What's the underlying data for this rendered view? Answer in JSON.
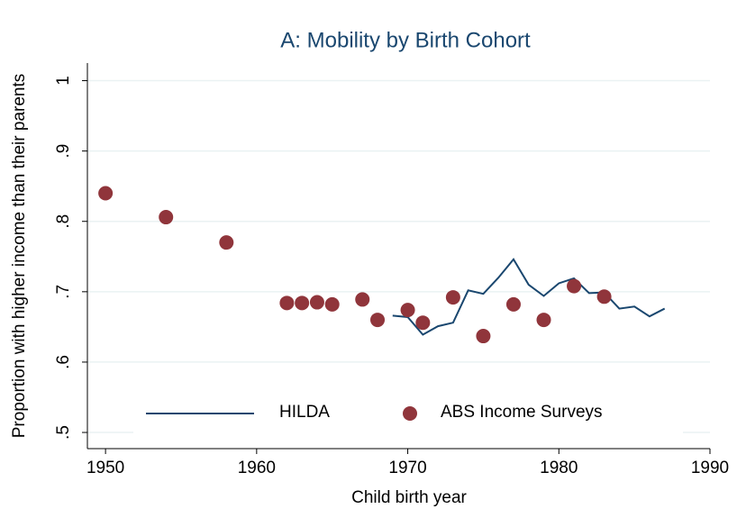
{
  "chart_data": {
    "type": "line",
    "title": "A: Mobility by Birth Cohort",
    "x_label": "Child birth year",
    "y_label": "Proportion with higher income than their parents",
    "xlim": [
      1948.8,
      1990
    ],
    "xticks": [
      1950,
      1960,
      1970,
      1980,
      1990
    ],
    "ylim": [
      0.477,
      1.025
    ],
    "yticks": [
      {
        "value": 0.5,
        "label": ".5"
      },
      {
        "value": 0.6,
        "label": ".6"
      },
      {
        "value": 0.7,
        "label": ".7"
      },
      {
        "value": 0.8,
        "label": ".8"
      },
      {
        "value": 0.9,
        "label": ".9"
      },
      1
    ],
    "grid": true,
    "legend_position": "bottom",
    "series": [
      {
        "name": "HILDA",
        "type": "line",
        "color": "#1a476f",
        "x": [
          1969,
          1970,
          1971,
          1972,
          1973,
          1974,
          1975,
          1976,
          1977,
          1978,
          1979,
          1980,
          1981,
          1982,
          1983,
          1984,
          1985,
          1986,
          1987
        ],
        "values": [
          0.666,
          0.664,
          0.639,
          0.651,
          0.656,
          0.702,
          0.697,
          0.72,
          0.746,
          0.71,
          0.694,
          0.712,
          0.719,
          0.698,
          0.699,
          0.676,
          0.679,
          0.665,
          0.676
        ]
      },
      {
        "name": "ABS Income Surveys",
        "type": "scatter",
        "color": "#90353b",
        "x": [
          1950,
          1954,
          1958,
          1962,
          1963,
          1964,
          1965,
          1967,
          1968,
          1970,
          1971,
          1973,
          1975,
          1977,
          1979,
          1981,
          1983
        ],
        "values": [
          0.84,
          0.806,
          0.77,
          0.684,
          0.684,
          0.685,
          0.682,
          0.689,
          0.66,
          0.674,
          0.656,
          0.692,
          0.637,
          0.682,
          0.66,
          0.708,
          0.693
        ]
      }
    ]
  }
}
